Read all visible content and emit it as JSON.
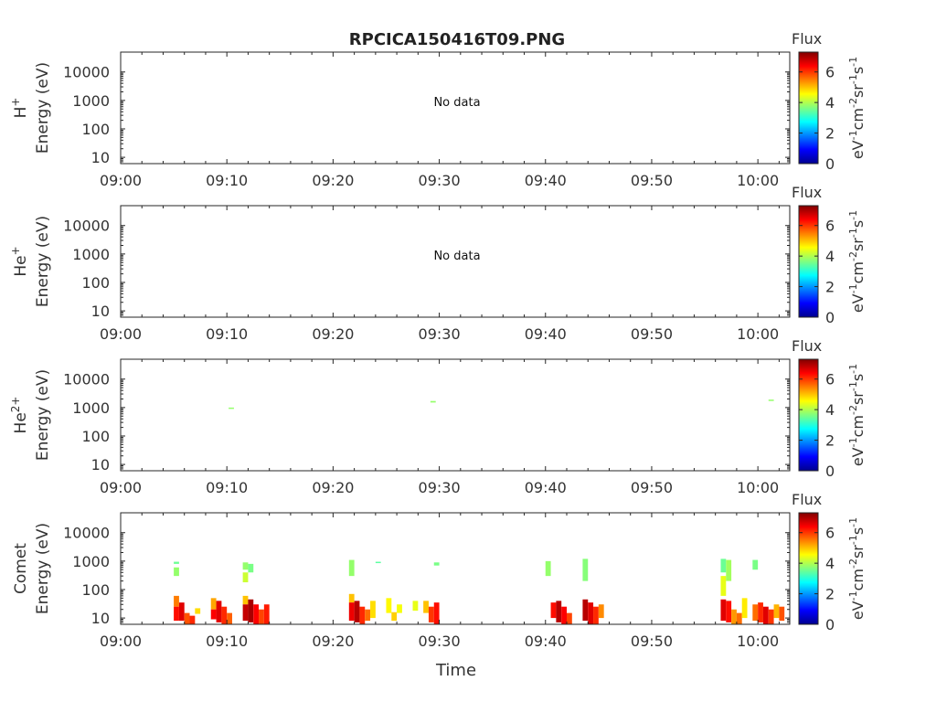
{
  "title": "RPCICA150416T09.PNG",
  "x_axis_title": "Time",
  "colorbar": {
    "title": "Flux",
    "unit_label": "eV-1cm-2sr-1s-1",
    "ticks": [
      "0",
      "2",
      "4",
      "6"
    ],
    "range": [
      0,
      7.3
    ]
  },
  "chart_data": [
    {
      "type": "heatmap",
      "panel": "H+",
      "ylabel_species": "H",
      "ylabel_charge": "+",
      "ylabel_units": "Energy (eV)",
      "xlim": [
        "09:00",
        "10:03"
      ],
      "ylim_log": [
        6,
        50000
      ],
      "x_ticks": [
        "09:00",
        "09:10",
        "09:20",
        "09:30",
        "09:40",
        "09:50",
        "10:00"
      ],
      "y_ticks": [
        "10",
        "100",
        "1000",
        "10000"
      ],
      "annotation": "No data",
      "cells": []
    },
    {
      "type": "heatmap",
      "panel": "He+",
      "ylabel_species": "He",
      "ylabel_charge": "+",
      "ylabel_units": "Energy (eV)",
      "xlim": [
        "09:00",
        "10:03"
      ],
      "ylim_log": [
        6,
        50000
      ],
      "x_ticks": [
        "09:00",
        "09:10",
        "09:20",
        "09:30",
        "09:40",
        "09:50",
        "10:00"
      ],
      "y_ticks": [
        "10",
        "100",
        "1000",
        "10000"
      ],
      "annotation": "No data",
      "cells": []
    },
    {
      "type": "heatmap",
      "panel": "He2+",
      "ylabel_species": "He",
      "ylabel_charge": "2+",
      "ylabel_units": "Energy (eV)",
      "xlim": [
        "09:00",
        "10:03"
      ],
      "ylim_log": [
        6,
        50000
      ],
      "x_ticks": [
        "09:00",
        "09:10",
        "09:20",
        "09:30",
        "09:40",
        "09:50",
        "10:00"
      ],
      "y_ticks": [
        "10",
        "100",
        "1000",
        "10000"
      ],
      "annotation": "",
      "cells": [
        {
          "t": "09:10:25",
          "e0": 900,
          "e1": 1000,
          "flux": 3.8
        },
        {
          "t": "09:29:25",
          "e0": 1500,
          "e1": 1700,
          "flux": 3.8
        },
        {
          "t": "10:01:15",
          "e0": 1700,
          "e1": 1900,
          "flux": 3.8
        }
      ]
    },
    {
      "type": "heatmap",
      "panel": "Comet",
      "ylabel_species": "Comet",
      "ylabel_charge": "",
      "ylabel_units": "Energy (eV)",
      "xlim": [
        "09:00",
        "10:03"
      ],
      "ylim_log": [
        6,
        50000
      ],
      "x_ticks": [
        "09:00",
        "09:10",
        "09:20",
        "09:30",
        "09:40",
        "09:50",
        "10:00"
      ],
      "y_ticks": [
        "10",
        "100",
        "1000",
        "10000"
      ],
      "annotation": "",
      "cells": [
        {
          "t": "09:05:15",
          "e0": 800,
          "e1": 950,
          "flux": 3.5
        },
        {
          "t": "09:05:15",
          "e0": 300,
          "e1": 600,
          "flux": 3.8
        },
        {
          "t": "09:05:15",
          "e0": 25,
          "e1": 60,
          "flux": 5.5
        },
        {
          "t": "09:05:15",
          "e0": 8,
          "e1": 25,
          "flux": 6.3
        },
        {
          "t": "09:05:45",
          "e0": 8,
          "e1": 35,
          "flux": 6.6
        },
        {
          "t": "09:06:15",
          "e0": 6,
          "e1": 15,
          "flux": 5.8
        },
        {
          "t": "09:06:45",
          "e0": 6,
          "e1": 12,
          "flux": 6.1
        },
        {
          "t": "09:07:15",
          "e0": 14,
          "e1": 22,
          "flux": 4.8
        },
        {
          "t": "09:08:45",
          "e0": 20,
          "e1": 50,
          "flux": 5.2
        },
        {
          "t": "09:08:45",
          "e0": 9,
          "e1": 20,
          "flux": 6.4
        },
        {
          "t": "09:09:15",
          "e0": 7,
          "e1": 40,
          "flux": 6.6
        },
        {
          "t": "09:09:45",
          "e0": 6,
          "e1": 25,
          "flux": 6.1
        },
        {
          "t": "09:10:15",
          "e0": 6,
          "e1": 15,
          "flux": 5.7
        },
        {
          "t": "09:11:45",
          "e0": 500,
          "e1": 900,
          "flux": 3.8
        },
        {
          "t": "09:11:45",
          "e0": 180,
          "e1": 400,
          "flux": 4.2
        },
        {
          "t": "09:11:45",
          "e0": 30,
          "e1": 60,
          "flux": 5.0
        },
        {
          "t": "09:11:45",
          "e0": 8,
          "e1": 30,
          "flux": 6.8
        },
        {
          "t": "09:12:15",
          "e0": 400,
          "e1": 800,
          "flux": 3.6
        },
        {
          "t": "09:12:15",
          "e0": 7,
          "e1": 45,
          "flux": 7.0
        },
        {
          "t": "09:12:45",
          "e0": 6,
          "e1": 30,
          "flux": 6.4
        },
        {
          "t": "09:13:15",
          "e0": 6,
          "e1": 20,
          "flux": 5.9
        },
        {
          "t": "09:13:45",
          "e0": 6,
          "e1": 30,
          "flux": 6.2
        },
        {
          "t": "09:21:45",
          "e0": 300,
          "e1": 1100,
          "flux": 3.8
        },
        {
          "t": "09:21:45",
          "e0": 35,
          "e1": 70,
          "flux": 5.0
        },
        {
          "t": "09:21:45",
          "e0": 8,
          "e1": 35,
          "flux": 6.5
        },
        {
          "t": "09:22:15",
          "e0": 7,
          "e1": 40,
          "flux": 6.9
        },
        {
          "t": "09:22:45",
          "e0": 6,
          "e1": 25,
          "flux": 6.1
        },
        {
          "t": "09:23:15",
          "e0": 8,
          "e1": 20,
          "flux": 5.6
        },
        {
          "t": "09:23:45",
          "e0": 10,
          "e1": 40,
          "flux": 4.8
        },
        {
          "t": "09:24:15",
          "e0": 850,
          "e1": 950,
          "flux": 3.4
        },
        {
          "t": "09:25:15",
          "e0": 15,
          "e1": 50,
          "flux": 4.6
        },
        {
          "t": "09:25:45",
          "e0": 8,
          "e1": 16,
          "flux": 4.9
        },
        {
          "t": "09:26:15",
          "e0": 15,
          "e1": 30,
          "flux": 4.5
        },
        {
          "t": "09:27:45",
          "e0": 18,
          "e1": 40,
          "flux": 4.4
        },
        {
          "t": "09:28:45",
          "e0": 15,
          "e1": 40,
          "flux": 5.0
        },
        {
          "t": "09:29:15",
          "e0": 7,
          "e1": 25,
          "flux": 6.0
        },
        {
          "t": "09:29:45",
          "e0": 700,
          "e1": 900,
          "flux": 3.6
        },
        {
          "t": "09:29:45",
          "e0": 6,
          "e1": 35,
          "flux": 6.3
        },
        {
          "t": "09:40:15",
          "e0": 300,
          "e1": 1000,
          "flux": 3.8
        },
        {
          "t": "09:40:45",
          "e0": 10,
          "e1": 35,
          "flux": 6.3
        },
        {
          "t": "09:41:15",
          "e0": 7,
          "e1": 40,
          "flux": 6.9
        },
        {
          "t": "09:41:45",
          "e0": 6,
          "e1": 25,
          "flux": 6.4
        },
        {
          "t": "09:42:15",
          "e0": 6,
          "e1": 15,
          "flux": 5.9
        },
        {
          "t": "09:43:45",
          "e0": 200,
          "e1": 1200,
          "flux": 3.7
        },
        {
          "t": "09:43:45",
          "e0": 8,
          "e1": 45,
          "flux": 6.9
        },
        {
          "t": "09:44:15",
          "e0": 6,
          "e1": 35,
          "flux": 6.6
        },
        {
          "t": "09:44:45",
          "e0": 6,
          "e1": 25,
          "flux": 6.1
        },
        {
          "t": "09:45:15",
          "e0": 10,
          "e1": 30,
          "flux": 5.4
        },
        {
          "t": "09:56:45",
          "e0": 400,
          "e1": 1200,
          "flux": 3.5
        },
        {
          "t": "09:56:45",
          "e0": 60,
          "e1": 300,
          "flux": 4.4
        },
        {
          "t": "09:56:45",
          "e0": 8,
          "e1": 45,
          "flux": 6.6
        },
        {
          "t": "09:57:15",
          "e0": 200,
          "e1": 1100,
          "flux": 3.9
        },
        {
          "t": "09:57:15",
          "e0": 7,
          "e1": 40,
          "flux": 6.3
        },
        {
          "t": "09:57:45",
          "e0": 6,
          "e1": 20,
          "flux": 5.3
        },
        {
          "t": "09:58:15",
          "e0": 6,
          "e1": 15,
          "flux": 5.6
        },
        {
          "t": "09:58:45",
          "e0": 10,
          "e1": 50,
          "flux": 4.7
        },
        {
          "t": "09:59:45",
          "e0": 500,
          "e1": 1100,
          "flux": 3.6
        },
        {
          "t": "09:59:45",
          "e0": 8,
          "e1": 30,
          "flux": 5.6
        },
        {
          "t": "10:00:15",
          "e0": 7,
          "e1": 35,
          "flux": 6.1
        },
        {
          "t": "10:00:45",
          "e0": 6,
          "e1": 25,
          "flux": 6.6
        },
        {
          "t": "10:01:15",
          "e0": 6,
          "e1": 20,
          "flux": 6.0
        },
        {
          "t": "10:01:45",
          "e0": 10,
          "e1": 30,
          "flux": 5.1
        },
        {
          "t": "10:02:15",
          "e0": 8,
          "e1": 25,
          "flux": 5.8
        }
      ]
    }
  ]
}
